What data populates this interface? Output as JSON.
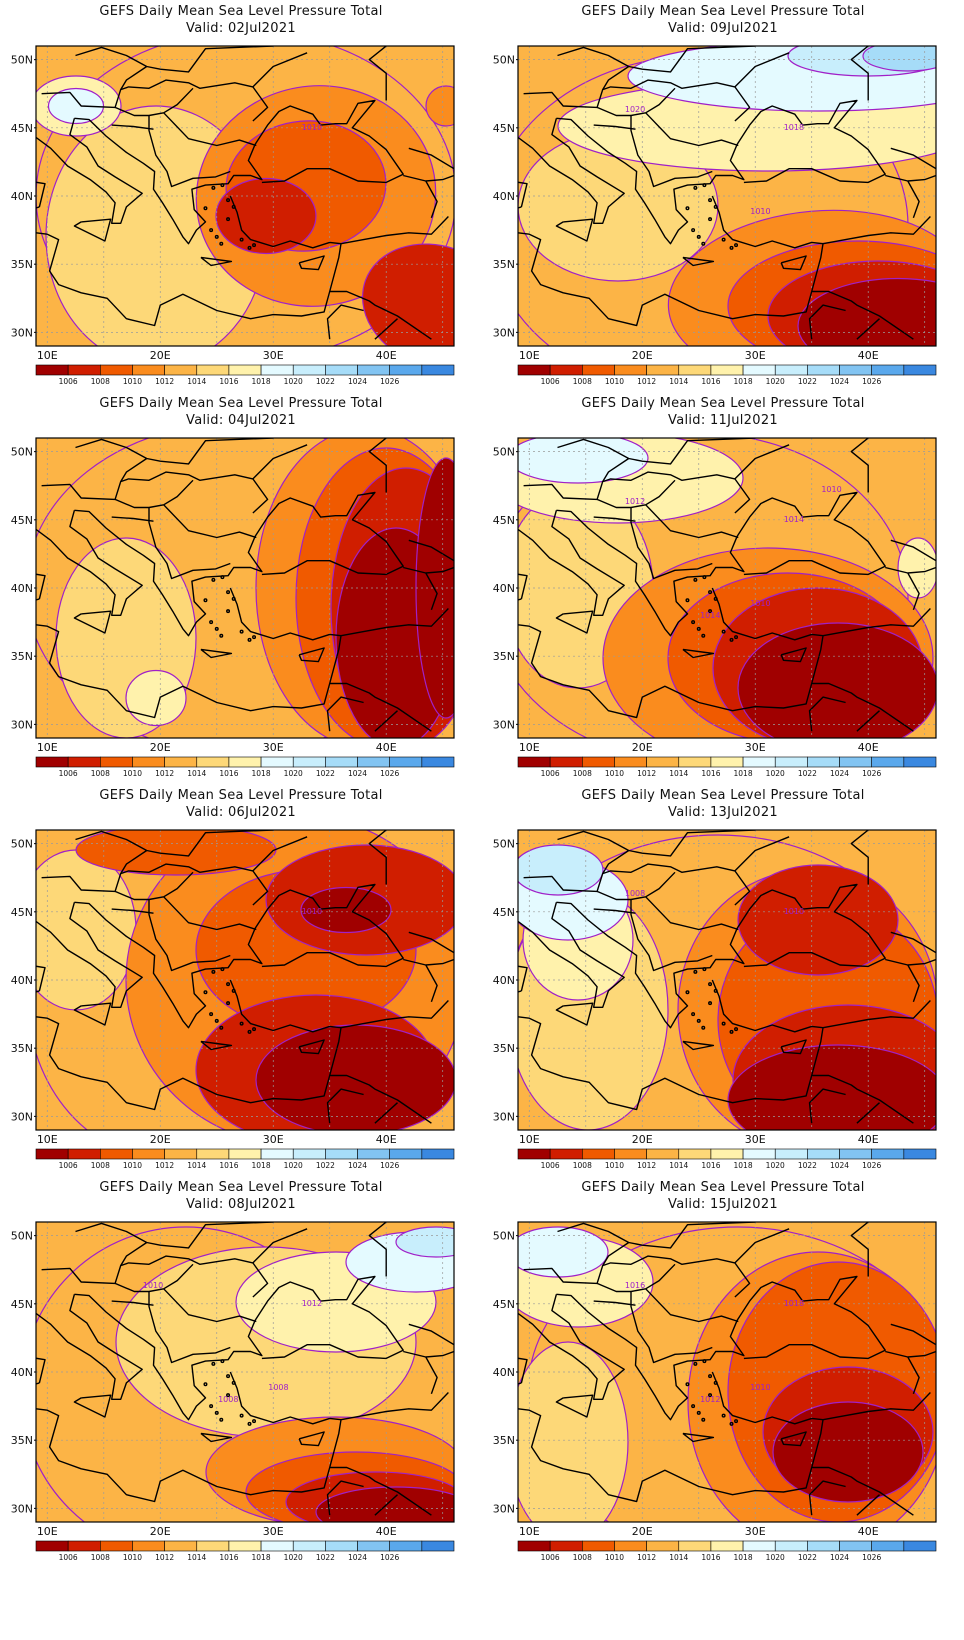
{
  "map_title": "GEFS Daily Mean Sea Level Pressure Total",
  "lat_labels": [
    "50N",
    "45N",
    "40N",
    "35N",
    "30N"
  ],
  "lon_labels": [
    "10E",
    "20E",
    "30E",
    "40E"
  ],
  "colorbar": {
    "colors": [
      "#a00000",
      "#d01e00",
      "#f05a00",
      "#fa8c1e",
      "#fcb446",
      "#fdd878",
      "#fff2ac",
      "#e4faff",
      "#c8eefc",
      "#a6dcf8",
      "#82c4f2",
      "#5aa8ec",
      "#3a88e0"
    ],
    "labels": [
      "1006",
      "1008",
      "1010",
      "1012",
      "1014",
      "1016",
      "1018",
      "1020",
      "1022",
      "1024",
      "1026"
    ]
  },
  "panels": [
    {
      "id": "02jul",
      "valid": "Valid: 02Jul2021",
      "contour_labels": [
        "1010"
      ]
    },
    {
      "id": "09jul",
      "valid": "Valid: 09Jul2021",
      "contour_labels": [
        "1018",
        "1020",
        "1010"
      ]
    },
    {
      "id": "04jul",
      "valid": "Valid: 04Jul2021",
      "contour_labels": []
    },
    {
      "id": "11jul",
      "valid": "Valid: 11Jul2021",
      "contour_labels": [
        "1014",
        "1012",
        "1010",
        "1014",
        "1010"
      ]
    },
    {
      "id": "06jul",
      "valid": "Valid: 06Jul2021",
      "contour_labels": [
        "1010"
      ]
    },
    {
      "id": "13jul",
      "valid": "Valid: 13Jul2021",
      "contour_labels": [
        "1010",
        "1008"
      ]
    },
    {
      "id": "08jul",
      "valid": "Valid: 08Jul2021",
      "contour_labels": [
        "1012",
        "1010",
        "1008",
        "1008"
      ]
    },
    {
      "id": "15jul",
      "valid": "Valid: 15Jul2021",
      "contour_labels": [
        "1018",
        "1016",
        "1010",
        "1012"
      ]
    }
  ]
}
